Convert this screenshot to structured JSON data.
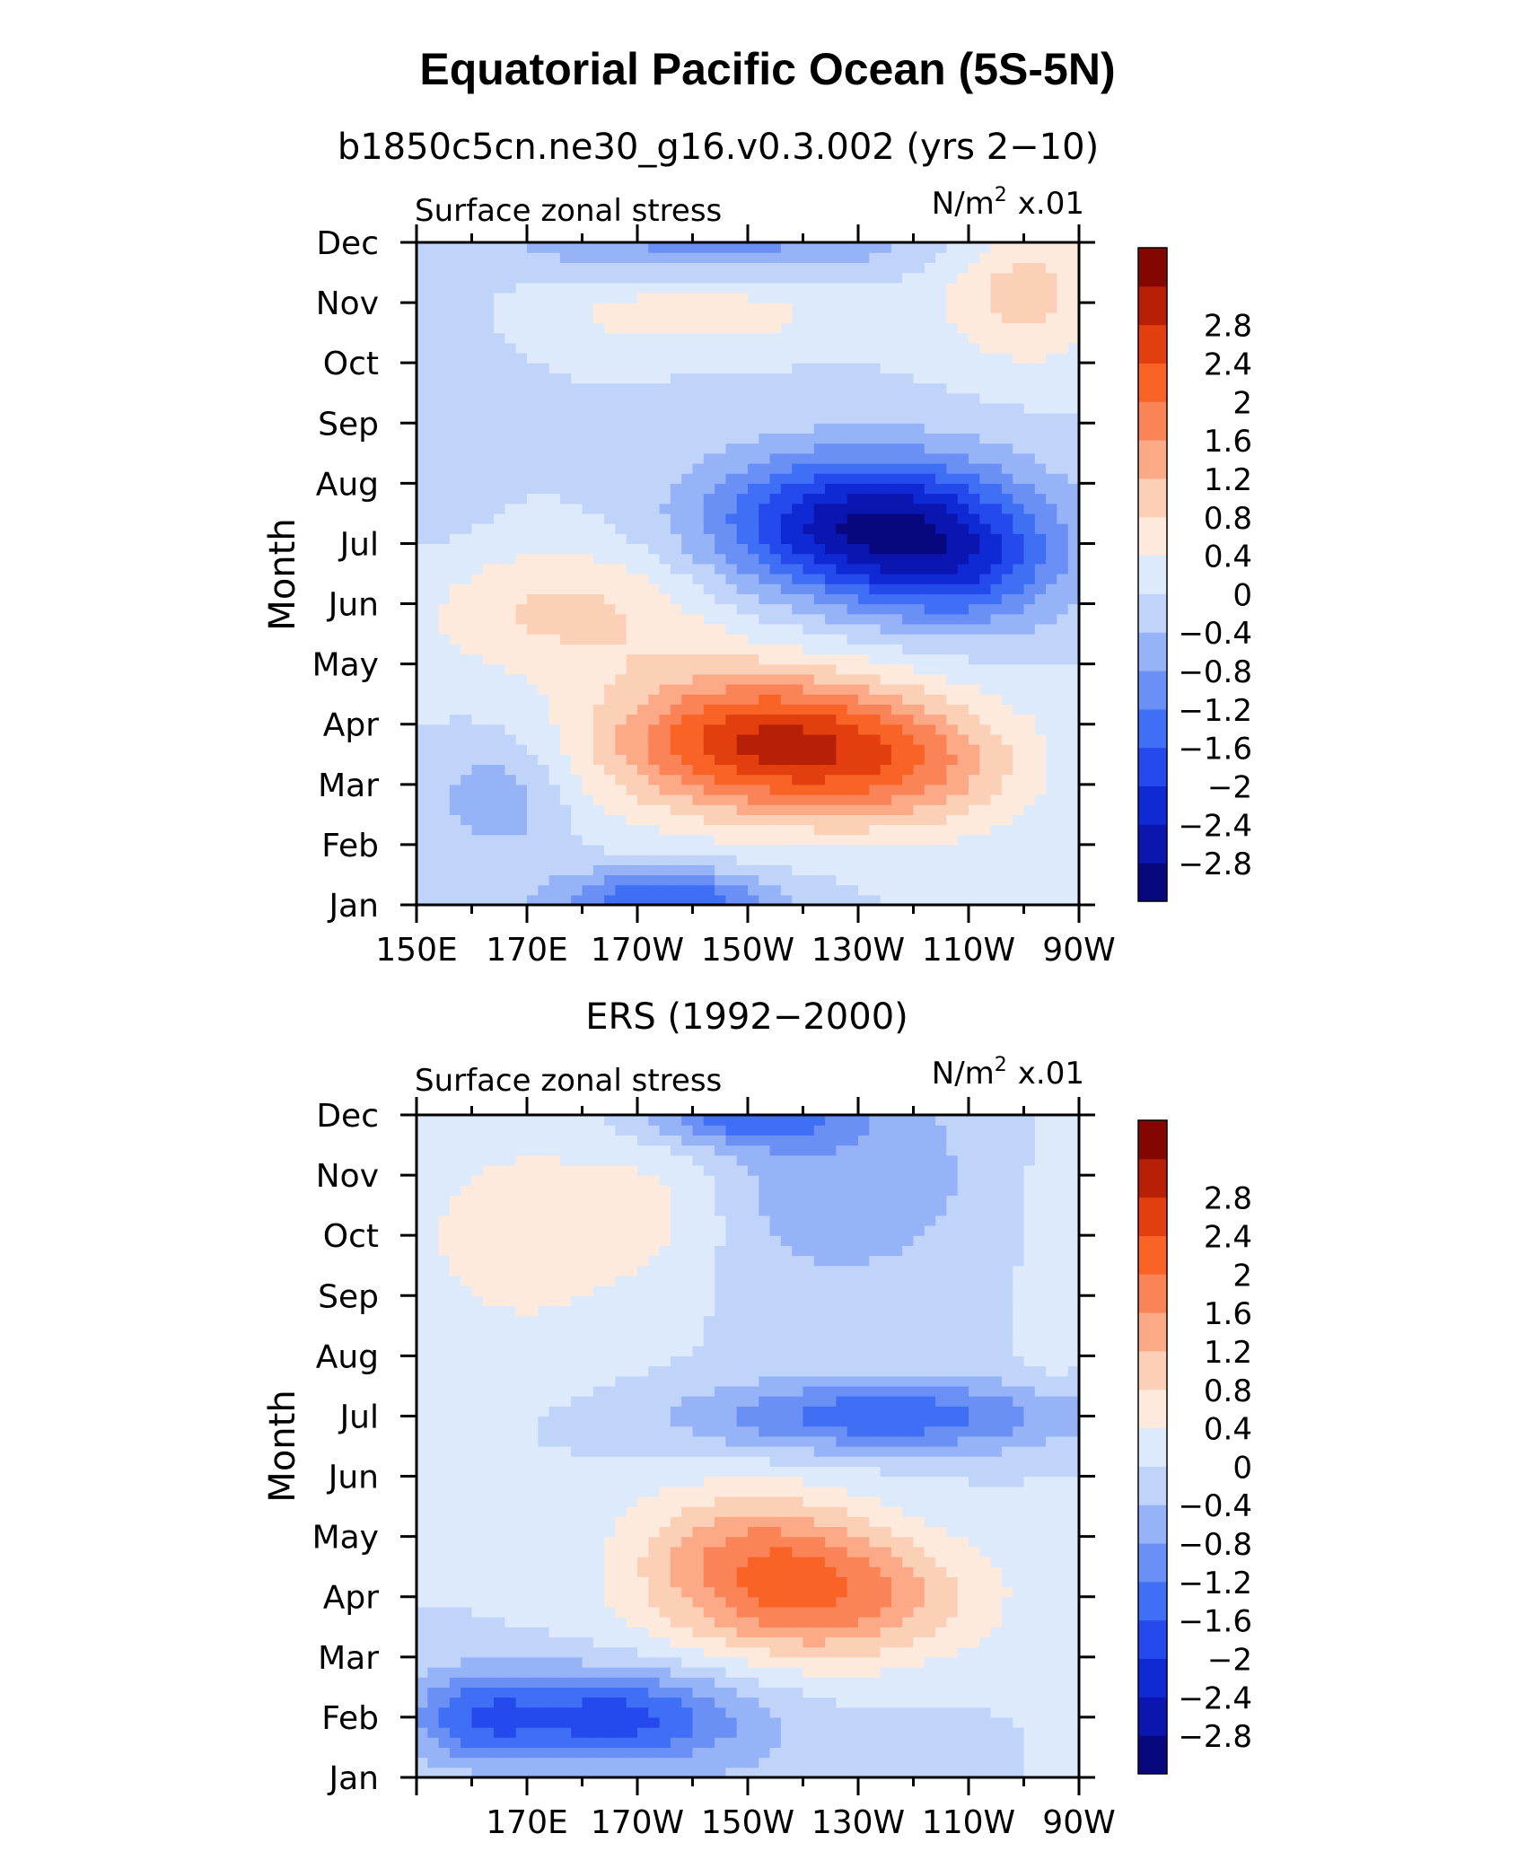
{
  "title": "Equatorial Pacific Ocean (5S-5N)",
  "chart_data": [
    {
      "type": "heatmap",
      "subtitle": "b1850c5cn.ne30_g16.v0.3.002 (yrs 2−10)",
      "left_label": "Surface zonal stress",
      "units_base": "N/m",
      "units_sup": "2",
      "units_scale": "x.01",
      "ylabel": "Month",
      "months": [
        "Jan",
        "Feb",
        "Mar",
        "Apr",
        "May",
        "Jun",
        "Jul",
        "Aug",
        "Sep",
        "Oct",
        "Nov",
        "Dec"
      ],
      "xticks": [
        {
          "lon": 150,
          "label": "150E"
        },
        {
          "lon": 170,
          "label": "170E"
        },
        {
          "lon": 190,
          "label": "170W"
        },
        {
          "lon": 210,
          "label": "150W"
        },
        {
          "lon": 230,
          "label": "130W"
        },
        {
          "lon": 250,
          "label": "110W"
        },
        {
          "lon": 270,
          "label": "90W"
        }
      ],
      "xlim": [
        150,
        270
      ],
      "features": [
        {
          "lon": 212,
          "mon": 2.7,
          "amp": 2.7,
          "wx": 28,
          "wy": 1.2
        },
        {
          "lon": 240,
          "mon": 2.3,
          "amp": 1.2,
          "wx": 22,
          "wy": 1.1
        },
        {
          "lon": 178,
          "mon": 4.9,
          "amp": 0.9,
          "wx": 28,
          "wy": 1.1
        },
        {
          "lon": 232,
          "mon": 6.3,
          "amp": -2.8,
          "wx": 28,
          "wy": 1.2
        },
        {
          "lon": 250,
          "mon": 5.5,
          "amp": -1.0,
          "wx": 18,
          "wy": 1.0
        },
        {
          "lon": 195,
          "mon": 0.1,
          "amp": -1.6,
          "wx": 20,
          "wy": 0.5
        },
        {
          "lon": 165,
          "mon": 1.8,
          "amp": -0.7,
          "wx": 12,
          "wy": 1.0
        },
        {
          "lon": 200,
          "mon": 9.8,
          "amp": 0.7,
          "wx": 25,
          "wy": 0.5
        },
        {
          "lon": 260,
          "mon": 10.2,
          "amp": 1.0,
          "wx": 15,
          "wy": 1.2
        },
        {
          "lon": 205,
          "mon": 11.0,
          "amp": -0.9,
          "wx": 40,
          "wy": 0.5
        },
        {
          "lon": 155,
          "mon": 8.0,
          "amp": -0.4,
          "wx": 10,
          "wy": 2.0
        }
      ]
    },
    {
      "type": "heatmap",
      "subtitle": "ERS (1992−2000)",
      "left_label": "Surface zonal stress",
      "units_base": "N/m",
      "units_sup": "2",
      "units_scale": "x.01",
      "ylabel": "Month",
      "months": [
        "Jan",
        "Feb",
        "Mar",
        "Apr",
        "May",
        "Jun",
        "Jul",
        "Aug",
        "Sep",
        "Oct",
        "Nov",
        "Dec"
      ],
      "xticks": [
        {
          "lon": 170,
          "label": "170E"
        },
        {
          "lon": 190,
          "label": "170W"
        },
        {
          "lon": 210,
          "label": "150W"
        },
        {
          "lon": 230,
          "label": "130W"
        },
        {
          "lon": 250,
          "label": "110W"
        },
        {
          "lon": 270,
          "label": "90W"
        }
      ],
      "xlim": [
        150,
        270
      ],
      "features": [
        {
          "lon": 222,
          "mon": 3.0,
          "amp": 1.9,
          "wx": 28,
          "wy": 1.1
        },
        {
          "lon": 210,
          "mon": 4.0,
          "amp": 1.0,
          "wx": 22,
          "wy": 1.0
        },
        {
          "lon": 185,
          "mon": 1.0,
          "amp": -1.8,
          "wx": 25,
          "wy": 0.8
        },
        {
          "lon": 160,
          "mon": 1.0,
          "amp": -1.0,
          "wx": 12,
          "wy": 0.8
        },
        {
          "lon": 235,
          "mon": 6.0,
          "amp": -1.5,
          "wx": 35,
          "wy": 0.6
        },
        {
          "lon": 225,
          "mon": 10.0,
          "amp": -0.7,
          "wx": 30,
          "wy": 2.0
        },
        {
          "lon": 210,
          "mon": 11.0,
          "amp": -1.2,
          "wx": 18,
          "wy": 0.5
        },
        {
          "lon": 170,
          "mon": 9.0,
          "amp": 0.6,
          "wx": 25,
          "wy": 2.0
        },
        {
          "lon": 195,
          "mon": 9.5,
          "amp": 0.5,
          "wx": 15,
          "wy": 1.2
        },
        {
          "lon": 265,
          "mon": 9.0,
          "amp": 0.3,
          "wx": 6,
          "wy": 3.0
        }
      ]
    }
  ],
  "colorbar": {
    "colors": [
      "#08087e",
      "#0b15b0",
      "#0f2ad5",
      "#2449ec",
      "#3f6ff5",
      "#6b90f5",
      "#97b3f7",
      "#c0d4fa",
      "#dceafc",
      "#fdeadd",
      "#fcd0b7",
      "#fba987",
      "#fa8458",
      "#f96326",
      "#e23e0e",
      "#b81f07",
      "#840600"
    ],
    "labels": [
      "−2.8",
      "−2.4",
      "−2",
      "−1.6",
      "−1.2",
      "−0.8",
      "−0.4",
      "0",
      "0.4",
      "0.8",
      "1.2",
      "1.6",
      "2",
      "2.4",
      "2.8"
    ],
    "levels": [
      -2.8,
      -2.4,
      -2,
      -1.6,
      -1.2,
      -0.8,
      -0.4,
      0,
      0.4,
      0.8,
      1.2,
      1.6,
      2,
      2.4,
      2.8
    ]
  }
}
